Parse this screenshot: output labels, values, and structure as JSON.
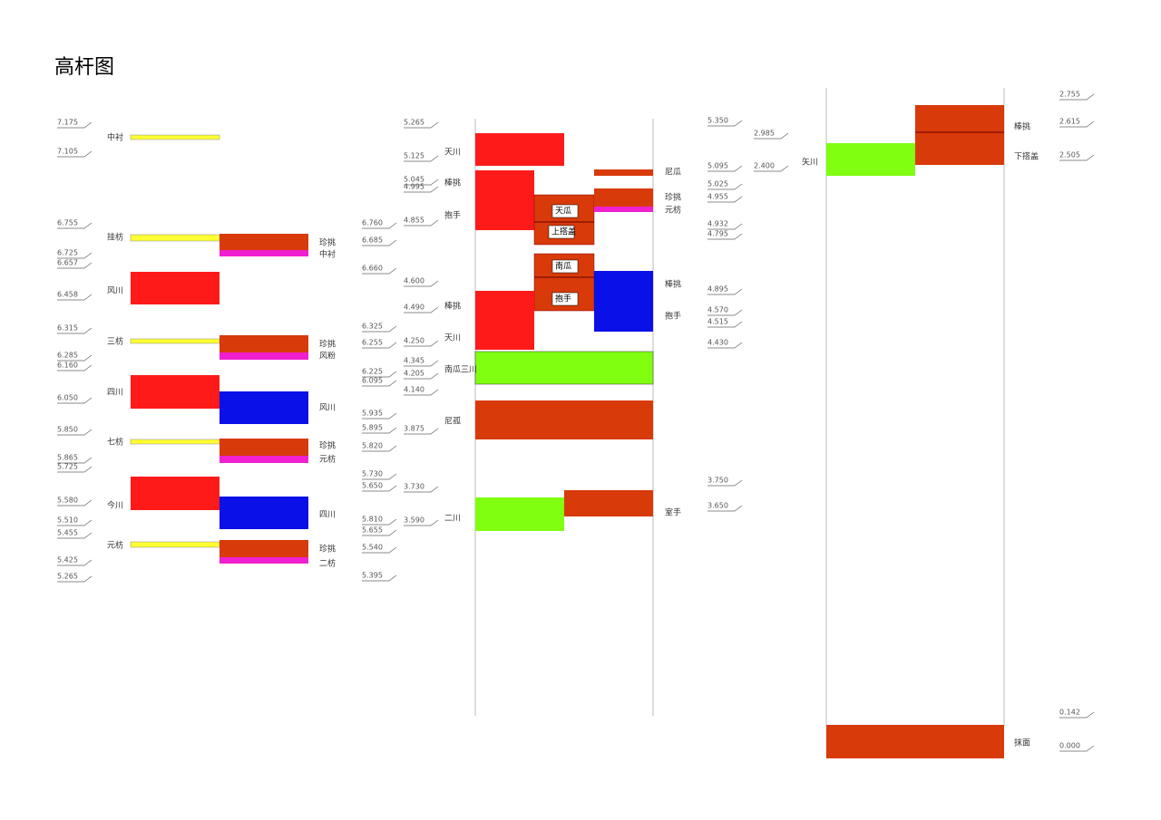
{
  "title": "高杆图",
  "groups": [
    {
      "elevations": [
        "7.175",
        "7.105",
        "6.755",
        "6.725",
        "6.657",
        "6.458",
        "6.315",
        "6.285",
        "6.160",
        "6.050",
        "5.850",
        "5.865",
        "5.725",
        "5.580",
        "5.510",
        "5.455",
        "5.425",
        "5.265"
      ],
      "labels": [
        "中衬",
        "挂枋",
        "风川",
        "三枋",
        "四川",
        "七枋",
        "今川",
        "元枋"
      ]
    },
    {
      "elevations": [
        "6.760",
        "6.685",
        "6.660",
        "6.325",
        "6.255",
        "6.225",
        "6.095",
        "5.935",
        "5.895",
        "5.820",
        "5.730",
        "5.650",
        "5.810",
        "5.655",
        "5.540",
        "5.395"
      ],
      "labels": [
        "珍挑",
        "中衬",
        "珍挑",
        "风粉",
        "风川",
        "珍挑",
        "元枋",
        "四川",
        "珍挑",
        "二枋"
      ]
    },
    {
      "elevations": [
        "5.265",
        "5.125",
        "5.045",
        "4.995",
        "4.855",
        "4.600",
        "4.490",
        "4.250",
        "4.345",
        "4.205",
        "4.140",
        "3.875",
        "3.730",
        "3.590"
      ],
      "labels": [
        "天川",
        "棒挑",
        "抱手",
        "棒挑",
        "天川",
        "南瓜三川",
        "尼孤",
        "二川"
      ],
      "box_labels": [
        "天瓜",
        "上搭盖",
        "南瓜",
        "抱手"
      ]
    },
    {
      "elevations": [
        "5.350",
        "5.095",
        "5.025",
        "4.955",
        "4.932",
        "4.795",
        "4.895",
        "4.570",
        "4.515",
        "4.430",
        "3.750",
        "3.650"
      ],
      "labels": [
        "尼瓜",
        "珍挑",
        "元枋",
        "棒挑",
        "抱手",
        "室手"
      ]
    },
    {
      "elevations": [
        "2.985",
        "2.400"
      ],
      "labels": [
        "矢川"
      ]
    },
    {
      "elevations": [
        "2.755",
        "2.615",
        "2.505",
        "0.142",
        "0.000"
      ],
      "labels": [
        "棒挑",
        "下搭盖",
        "抹面"
      ]
    }
  ]
}
